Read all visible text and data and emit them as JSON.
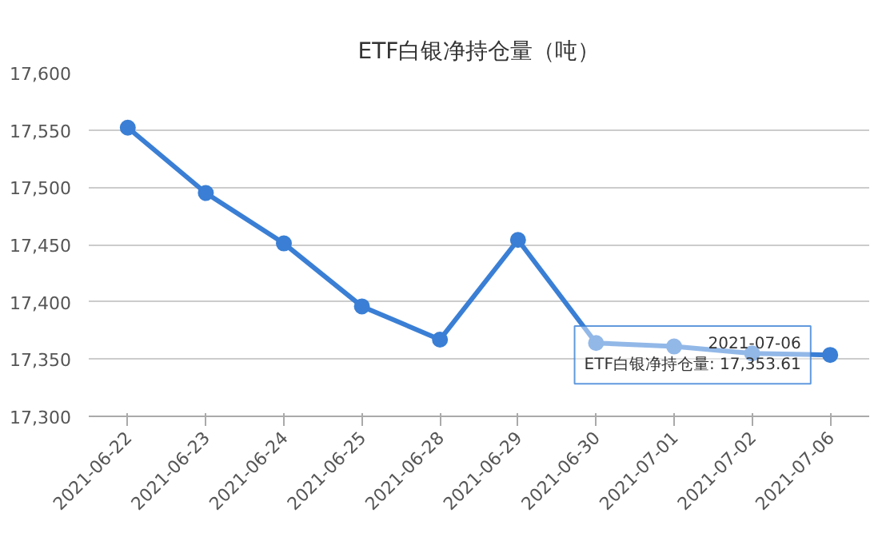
{
  "chart_data": {
    "type": "line",
    "title": "ETF白银净持仓量（吨）",
    "categories": [
      "2021-06-22",
      "2021-06-23",
      "2021-06-24",
      "2021-06-25",
      "2021-06-28",
      "2021-06-29",
      "2021-06-30",
      "2021-07-01",
      "2021-07-02",
      "2021-07-06"
    ],
    "series": [
      {
        "color": "#3a7fd5",
        "values": [
          17552,
          17495,
          17451,
          17396,
          17367,
          17454,
          17364,
          17361,
          17355,
          17353.61
        ]
      }
    ],
    "ylim": [
      17300,
      17600
    ],
    "yticks": [
      {
        "value": 17300,
        "label": "17,300"
      },
      {
        "value": 17350,
        "label": "17,350"
      },
      {
        "value": 17400,
        "label": "17,400"
      },
      {
        "value": 17450,
        "label": "17,450"
      },
      {
        "value": 17500,
        "label": "17,500"
      },
      {
        "value": 17550,
        "label": "17,550"
      },
      {
        "value": 17600,
        "label": "17,600"
      }
    ],
    "grid": "y",
    "marker": "circle",
    "line_style": "solid",
    "annotations": [
      {
        "text": "2021-07-06\nETF白银净持仓量: 17,353.61",
        "x": "2021-07-06",
        "y": 17353.61
      }
    ]
  }
}
